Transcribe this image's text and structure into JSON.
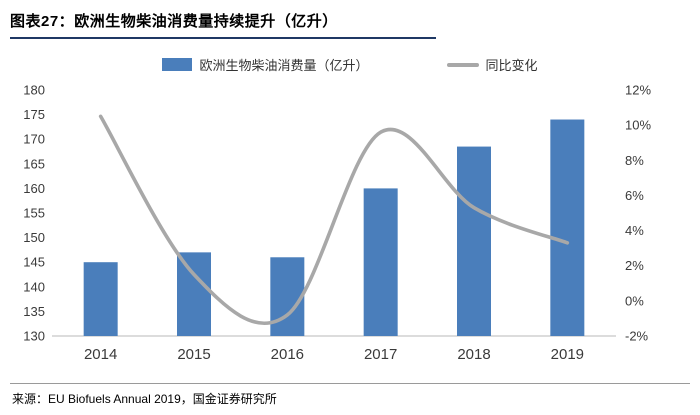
{
  "header": {
    "title_prefix": "图表27：",
    "title_main": "欧洲生物柴油消费量持续提升（亿升）"
  },
  "legend": [
    {
      "label": "欧洲生物柴油消费量（亿升）",
      "swatch": "bar"
    },
    {
      "label": "同比变化",
      "swatch": "line"
    }
  ],
  "chart_data": {
    "type": "bar+line combo",
    "categories": [
      "2014",
      "2015",
      "2016",
      "2017",
      "2018",
      "2019"
    ],
    "series": [
      {
        "name": "欧洲生物柴油消费量（亿升）",
        "type": "bar",
        "axis": "left",
        "values": [
          145,
          147,
          146,
          160,
          168.5,
          174
        ]
      },
      {
        "name": "同比变化",
        "type": "line",
        "axis": "right",
        "values_pct": [
          10.5,
          1.5,
          -0.8,
          9.6,
          5.3,
          3.3
        ]
      }
    ],
    "left_axis": {
      "min": 130,
      "max": 180,
      "step": 5,
      "ticks": [
        180,
        175,
        170,
        165,
        160,
        155,
        150,
        145,
        140,
        135,
        130
      ]
    },
    "right_axis": {
      "min": -2,
      "max": 12,
      "step": 2,
      "ticks": [
        "12%",
        "10%",
        "8%",
        "6%",
        "4%",
        "2%",
        "0%",
        "-2%"
      ]
    },
    "grid": "off",
    "legend_position": "top-center"
  },
  "footer": {
    "source": "来源：EU Biofuels Annual 2019，国金证券研究所"
  },
  "colors": {
    "bar": "#4a7ebb",
    "line": "#a8a8a8",
    "title_underline": "#1f3864",
    "axis_text": "#3a3a3a",
    "axis_line": "#c8c8c8"
  }
}
